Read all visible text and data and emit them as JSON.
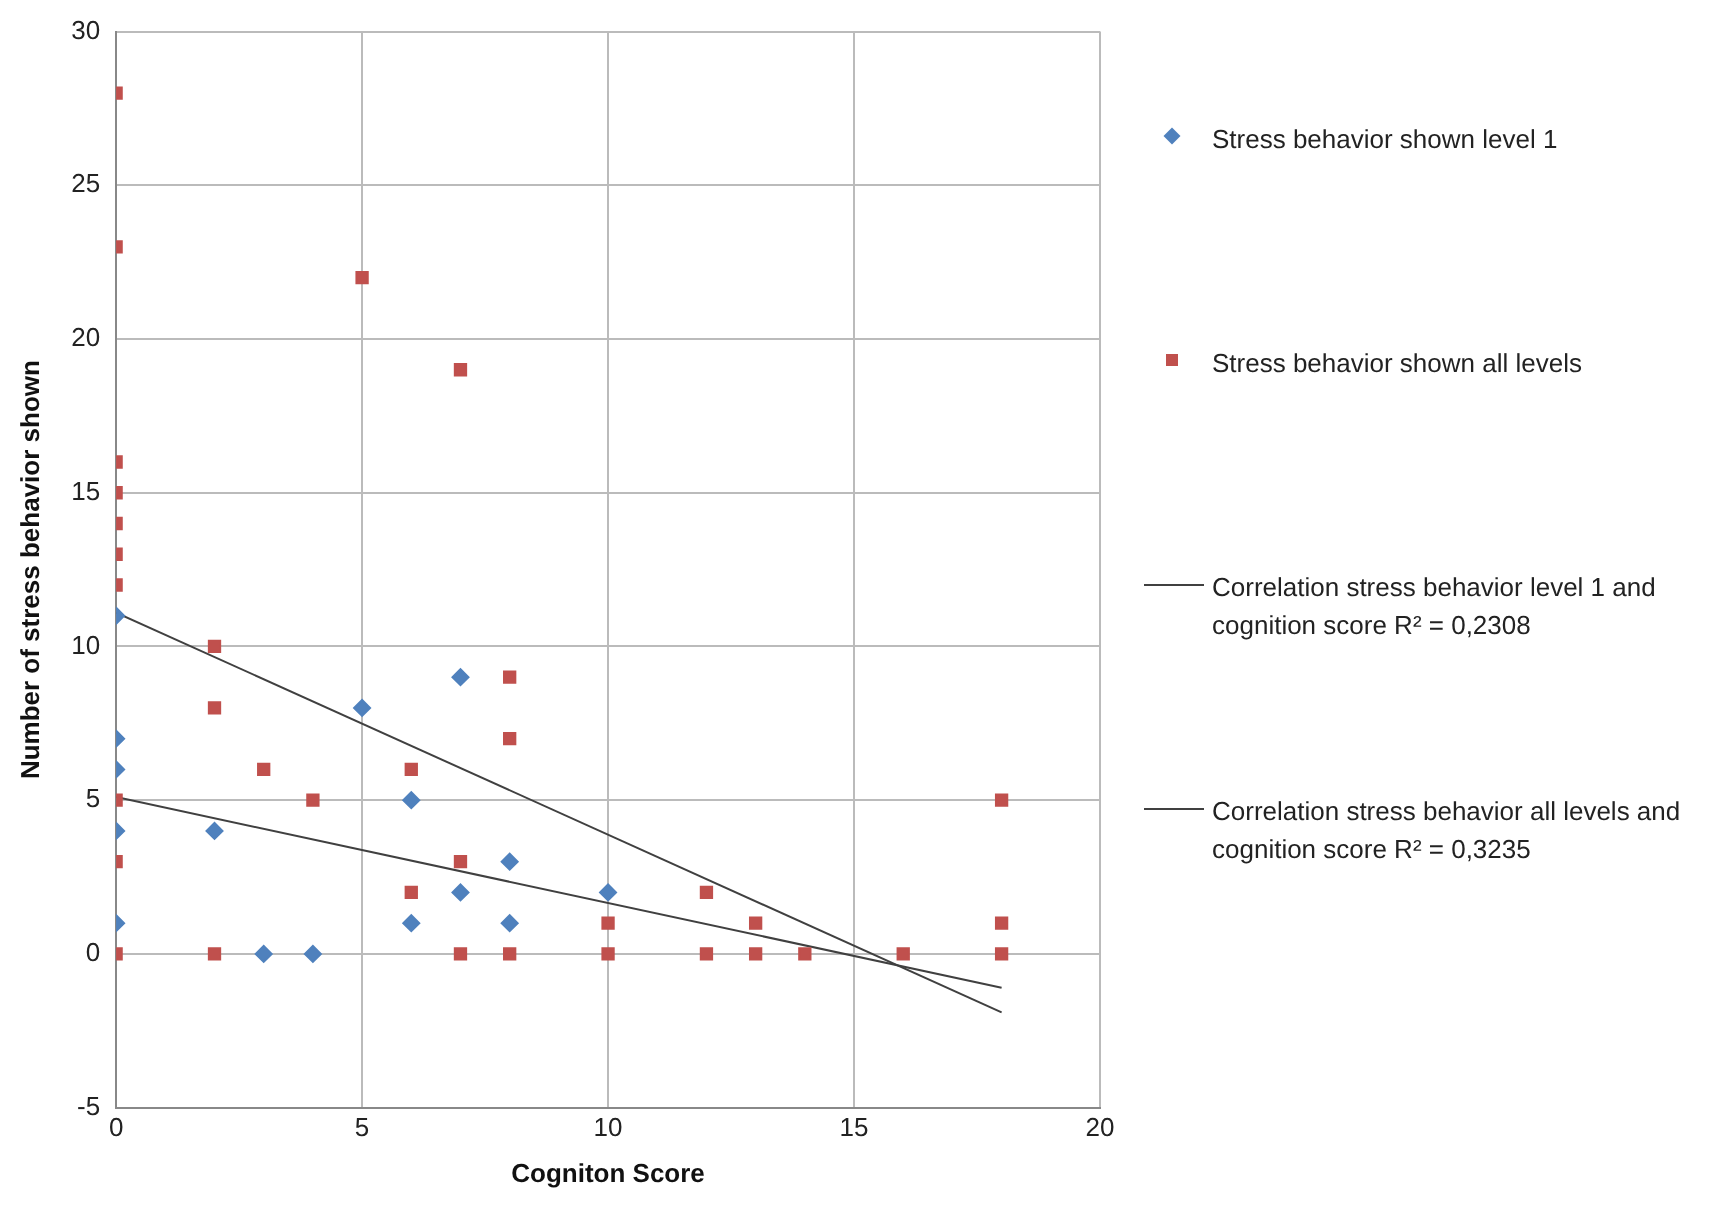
{
  "chart_data": {
    "type": "scatter",
    "xlabel": "Cogniton Score",
    "ylabel": "Number of stress behavior shown",
    "xlim": [
      0,
      20
    ],
    "xticks": [
      0,
      5,
      10,
      15,
      20
    ],
    "ylim": [
      -5,
      30
    ],
    "yticks": [
      -5,
      0,
      5,
      10,
      15,
      20,
      25,
      30
    ],
    "grid": true,
    "legend": "right",
    "series": [
      {
        "name": "Stress behavior shown level 1",
        "color": "#4f81bd",
        "marker": "diamond",
        "x": [
          0,
          0,
          0,
          0,
          0,
          2,
          3,
          4,
          5,
          6,
          6,
          7,
          7,
          8,
          8,
          10
        ],
        "values": [
          11,
          7,
          6,
          4,
          1,
          4,
          0,
          0,
          8,
          5,
          1,
          9,
          2,
          3,
          1,
          2
        ]
      },
      {
        "name": "Stress behavior shown all levels",
        "color": "#c0504d",
        "marker": "square",
        "x": [
          0,
          0,
          0,
          0,
          0,
          0,
          0,
          0,
          0,
          0,
          2,
          2,
          2,
          3,
          4,
          5,
          6,
          6,
          7,
          7,
          7,
          8,
          8,
          8,
          10,
          10,
          12,
          12,
          13,
          13,
          14,
          16,
          18,
          18,
          18
        ],
        "values": [
          28,
          23,
          16,
          15,
          14,
          13,
          12,
          5,
          3,
          0,
          10,
          8,
          0,
          6,
          5,
          22,
          6,
          2,
          19,
          3,
          0,
          9,
          7,
          0,
          1,
          0,
          2,
          0,
          1,
          0,
          0,
          0,
          5,
          1,
          0
        ]
      },
      {
        "name": "Correlation stress behavior level 1 and cognition score  R² = 0,2308",
        "type": "line",
        "color": "#404040",
        "marker": "none",
        "x": [
          0,
          18
        ],
        "values": [
          5.1,
          -1.1
        ]
      },
      {
        "name": "Correlation stress behavior all levels and cognition score  R² = 0,3235",
        "type": "line",
        "color": "#404040",
        "marker": "none",
        "x": [
          0,
          18
        ],
        "values": [
          11.1,
          -1.9
        ]
      }
    ]
  }
}
